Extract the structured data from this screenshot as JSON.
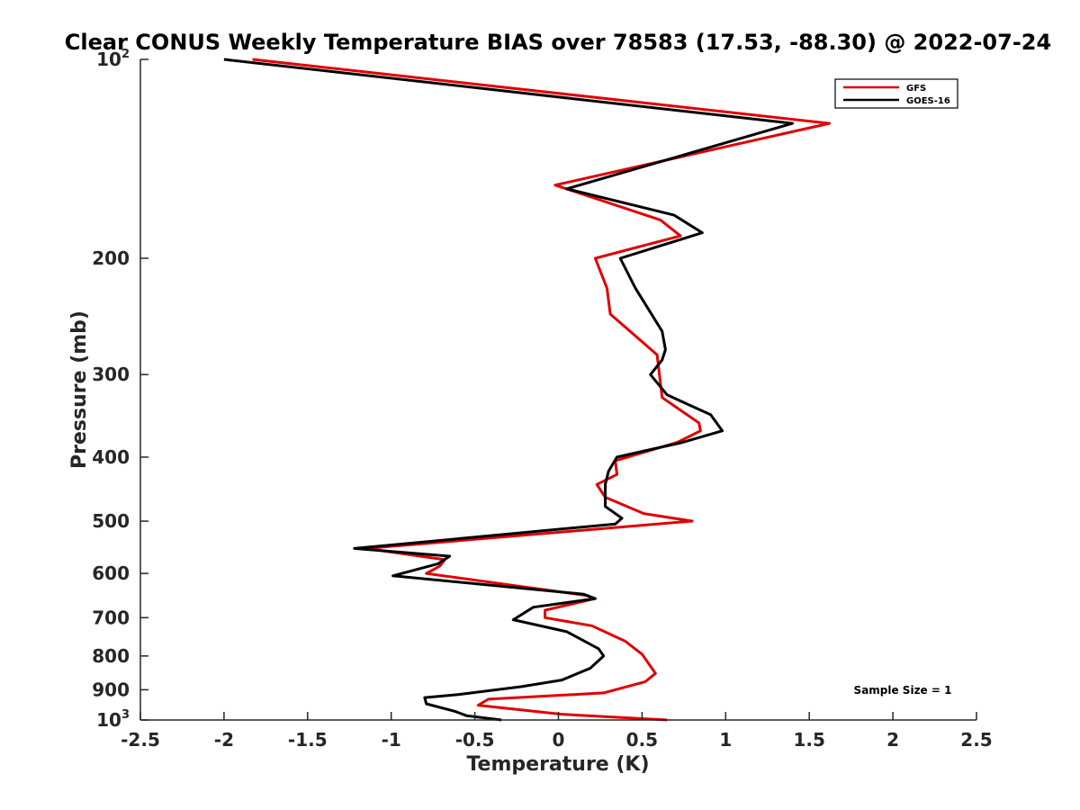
{
  "chart_data": {
    "type": "line",
    "title": "Clear CONUS Weekly Temperature BIAS over 78583 (17.53, -88.30) @ 2022-07-24",
    "xlabel": "Temperature (K)",
    "ylabel": "Pressure (mb)",
    "xlim": [
      -2.5,
      2.5
    ],
    "ylim": [
      100,
      1000
    ],
    "yscale": "log",
    "yreversed": true,
    "grid": false,
    "legend_position": "top-right",
    "x_ticks": [
      -2.5,
      -2,
      -1.5,
      -1,
      -0.5,
      0,
      0.5,
      1,
      1.5,
      2,
      2.5
    ],
    "x_tick_labels": [
      "-2.5",
      "-2",
      "-1.5",
      "-1",
      "-0.5",
      "0",
      "0.5",
      "1",
      "1.5",
      "2",
      "2.5"
    ],
    "y_ticks": [
      {
        "value": 100,
        "base": "10",
        "exp": "2"
      },
      {
        "value": 200,
        "label": "200"
      },
      {
        "value": 300,
        "label": "300"
      },
      {
        "value": 400,
        "label": "400"
      },
      {
        "value": 500,
        "label": "500"
      },
      {
        "value": 600,
        "label": "600"
      },
      {
        "value": 700,
        "label": "700"
      },
      {
        "value": 800,
        "label": "800"
      },
      {
        "value": 900,
        "label": "900"
      },
      {
        "value": 1000,
        "base": "10",
        "exp": "3"
      }
    ],
    "series": [
      {
        "name": "GFS",
        "color": "#e00000",
        "points": [
          {
            "x": -1.83,
            "y": 100
          },
          {
            "x": 1.62,
            "y": 125
          },
          {
            "x": -0.02,
            "y": 155
          },
          {
            "x": 0.61,
            "y": 175
          },
          {
            "x": 0.73,
            "y": 185
          },
          {
            "x": 0.22,
            "y": 200
          },
          {
            "x": 0.29,
            "y": 222
          },
          {
            "x": 0.31,
            "y": 243
          },
          {
            "x": 0.59,
            "y": 280
          },
          {
            "x": 0.62,
            "y": 325
          },
          {
            "x": 0.84,
            "y": 355
          },
          {
            "x": 0.85,
            "y": 365
          },
          {
            "x": 0.71,
            "y": 380
          },
          {
            "x": 0.34,
            "y": 405
          },
          {
            "x": 0.35,
            "y": 425
          },
          {
            "x": 0.23,
            "y": 440
          },
          {
            "x": 0.28,
            "y": 460
          },
          {
            "x": 0.51,
            "y": 487
          },
          {
            "x": 0.8,
            "y": 500
          },
          {
            "x": -1.15,
            "y": 550
          },
          {
            "x": -0.68,
            "y": 572
          },
          {
            "x": -0.71,
            "y": 585
          },
          {
            "x": -0.79,
            "y": 600
          },
          {
            "x": 0.17,
            "y": 648
          },
          {
            "x": 0.22,
            "y": 655
          },
          {
            "x": -0.08,
            "y": 682
          },
          {
            "x": -0.08,
            "y": 700
          },
          {
            "x": 0.2,
            "y": 720
          },
          {
            "x": 0.4,
            "y": 760
          },
          {
            "x": 0.5,
            "y": 795
          },
          {
            "x": 0.58,
            "y": 850
          },
          {
            "x": 0.52,
            "y": 875
          },
          {
            "x": 0.27,
            "y": 910
          },
          {
            "x": -0.42,
            "y": 930
          },
          {
            "x": -0.48,
            "y": 950
          },
          {
            "x": 0.02,
            "y": 980
          },
          {
            "x": 0.65,
            "y": 1000
          }
        ]
      },
      {
        "name": "GOES-16",
        "color": "#000000",
        "points": [
          {
            "x": -2.0,
            "y": 100
          },
          {
            "x": 1.4,
            "y": 125
          },
          {
            "x": 0.05,
            "y": 157
          },
          {
            "x": 0.69,
            "y": 172
          },
          {
            "x": 0.86,
            "y": 183
          },
          {
            "x": 0.37,
            "y": 200
          },
          {
            "x": 0.46,
            "y": 222
          },
          {
            "x": 0.62,
            "y": 258
          },
          {
            "x": 0.64,
            "y": 275
          },
          {
            "x": 0.62,
            "y": 285
          },
          {
            "x": 0.55,
            "y": 300
          },
          {
            "x": 0.65,
            "y": 322
          },
          {
            "x": 0.91,
            "y": 345
          },
          {
            "x": 0.98,
            "y": 365
          },
          {
            "x": 0.74,
            "y": 380
          },
          {
            "x": 0.35,
            "y": 400
          },
          {
            "x": 0.3,
            "y": 420
          },
          {
            "x": 0.28,
            "y": 440
          },
          {
            "x": 0.28,
            "y": 475
          },
          {
            "x": 0.38,
            "y": 495
          },
          {
            "x": 0.34,
            "y": 505
          },
          {
            "x": -1.22,
            "y": 550
          },
          {
            "x": -0.65,
            "y": 565
          },
          {
            "x": -0.72,
            "y": 580
          },
          {
            "x": -0.99,
            "y": 605
          },
          {
            "x": 0.15,
            "y": 645
          },
          {
            "x": 0.22,
            "y": 655
          },
          {
            "x": -0.15,
            "y": 675
          },
          {
            "x": -0.27,
            "y": 705
          },
          {
            "x": 0.05,
            "y": 735
          },
          {
            "x": 0.24,
            "y": 780
          },
          {
            "x": 0.27,
            "y": 800
          },
          {
            "x": 0.19,
            "y": 835
          },
          {
            "x": 0.02,
            "y": 870
          },
          {
            "x": -0.22,
            "y": 890
          },
          {
            "x": -0.6,
            "y": 915
          },
          {
            "x": -0.8,
            "y": 925
          },
          {
            "x": -0.79,
            "y": 945
          },
          {
            "x": -0.62,
            "y": 970
          },
          {
            "x": -0.55,
            "y": 985
          },
          {
            "x": -0.34,
            "y": 1000
          }
        ]
      }
    ],
    "annotations": [
      "Sample Size = 1"
    ]
  }
}
